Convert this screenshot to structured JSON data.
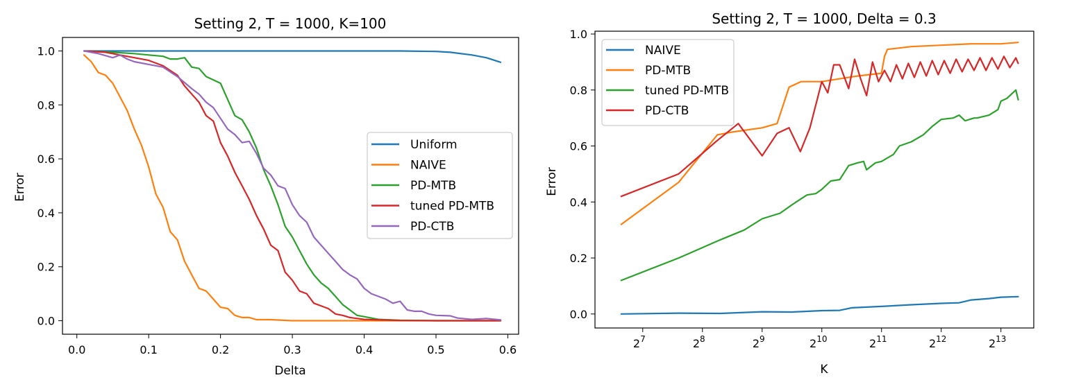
{
  "chart_data": [
    {
      "type": "line",
      "title": "Setting 2, T = 1000, K=100",
      "xlabel": "Delta",
      "ylabel": "Error",
      "xlim": [
        -0.02,
        0.615
      ],
      "ylim": [
        -0.05,
        1.05
      ],
      "xticks": [
        0.0,
        0.1,
        0.2,
        0.3,
        0.4,
        0.5,
        0.6
      ],
      "xtick_labels": [
        "0.0",
        "0.1",
        "0.2",
        "0.3",
        "0.4",
        "0.5",
        "0.6"
      ],
      "yticks": [
        0.0,
        0.2,
        0.4,
        0.6,
        0.8,
        1.0
      ],
      "ytick_labels": [
        "0.0",
        "0.2",
        "0.4",
        "0.6",
        "0.8",
        "1.0"
      ],
      "legend_position": "center-right",
      "series": [
        {
          "name": "Uniform",
          "color": "#1f77b4",
          "x": [
            0.01,
            0.1,
            0.2,
            0.3,
            0.4,
            0.45,
            0.5,
            0.52,
            0.55,
            0.57,
            0.59
          ],
          "y": [
            1.0,
            1.0,
            1.0,
            1.0,
            1.0,
            1.0,
            0.998,
            0.995,
            0.985,
            0.975,
            0.958
          ]
        },
        {
          "name": "NAIVE",
          "color": "#ff7f0e",
          "x": [
            0.01,
            0.02,
            0.03,
            0.04,
            0.05,
            0.06,
            0.07,
            0.08,
            0.09,
            0.1,
            0.11,
            0.12,
            0.13,
            0.14,
            0.15,
            0.16,
            0.17,
            0.18,
            0.19,
            0.2,
            0.21,
            0.22,
            0.23,
            0.24,
            0.25,
            0.27,
            0.3,
            0.35,
            0.4,
            0.5,
            0.59
          ],
          "y": [
            0.985,
            0.96,
            0.92,
            0.91,
            0.88,
            0.83,
            0.78,
            0.71,
            0.65,
            0.57,
            0.47,
            0.42,
            0.33,
            0.3,
            0.22,
            0.17,
            0.12,
            0.11,
            0.08,
            0.05,
            0.045,
            0.02,
            0.012,
            0.012,
            0.004,
            0.004,
            0.0,
            0.0,
            0.0,
            0.0,
            0.0
          ]
        },
        {
          "name": "PD-MTB",
          "color": "#2ca02c",
          "x": [
            0.01,
            0.05,
            0.08,
            0.1,
            0.12,
            0.13,
            0.14,
            0.15,
            0.16,
            0.17,
            0.18,
            0.2,
            0.22,
            0.23,
            0.24,
            0.25,
            0.26,
            0.27,
            0.28,
            0.29,
            0.3,
            0.31,
            0.32,
            0.33,
            0.34,
            0.35,
            0.36,
            0.37,
            0.38,
            0.39,
            0.4,
            0.42,
            0.45,
            0.5,
            0.59
          ],
          "y": [
            1.0,
            0.995,
            0.99,
            0.985,
            0.98,
            0.97,
            0.97,
            0.975,
            0.94,
            0.935,
            0.905,
            0.88,
            0.76,
            0.745,
            0.7,
            0.64,
            0.56,
            0.5,
            0.43,
            0.35,
            0.31,
            0.26,
            0.21,
            0.17,
            0.14,
            0.12,
            0.09,
            0.06,
            0.04,
            0.02,
            0.015,
            0.005,
            0.002,
            0.0,
            0.0
          ]
        },
        {
          "name": "tuned PD-MTB",
          "color": "#d62728",
          "x": [
            0.01,
            0.04,
            0.06,
            0.08,
            0.1,
            0.12,
            0.14,
            0.15,
            0.16,
            0.17,
            0.18,
            0.19,
            0.2,
            0.21,
            0.22,
            0.23,
            0.24,
            0.25,
            0.26,
            0.27,
            0.28,
            0.29,
            0.3,
            0.31,
            0.32,
            0.33,
            0.34,
            0.35,
            0.36,
            0.37,
            0.38,
            0.4,
            0.45,
            0.5,
            0.59
          ],
          "y": [
            1.0,
            0.995,
            0.985,
            0.975,
            0.965,
            0.945,
            0.91,
            0.87,
            0.84,
            0.81,
            0.76,
            0.74,
            0.66,
            0.61,
            0.55,
            0.5,
            0.45,
            0.39,
            0.34,
            0.28,
            0.26,
            0.18,
            0.15,
            0.11,
            0.1,
            0.065,
            0.055,
            0.045,
            0.025,
            0.02,
            0.012,
            0.005,
            0.001,
            0.0,
            0.0
          ]
        },
        {
          "name": "PD-CTB",
          "color": "#9467bd",
          "x": [
            0.01,
            0.03,
            0.05,
            0.06,
            0.07,
            0.08,
            0.1,
            0.12,
            0.14,
            0.16,
            0.17,
            0.18,
            0.19,
            0.2,
            0.21,
            0.22,
            0.23,
            0.24,
            0.25,
            0.26,
            0.27,
            0.28,
            0.29,
            0.3,
            0.31,
            0.32,
            0.33,
            0.34,
            0.35,
            0.36,
            0.37,
            0.38,
            0.39,
            0.4,
            0.41,
            0.42,
            0.43,
            0.44,
            0.45,
            0.46,
            0.47,
            0.48,
            0.49,
            0.5,
            0.52,
            0.53,
            0.55,
            0.57,
            0.59
          ],
          "y": [
            1.0,
            0.99,
            0.975,
            0.985,
            0.97,
            0.96,
            0.95,
            0.94,
            0.905,
            0.86,
            0.84,
            0.81,
            0.79,
            0.75,
            0.71,
            0.69,
            0.66,
            0.665,
            0.62,
            0.565,
            0.54,
            0.5,
            0.49,
            0.43,
            0.39,
            0.365,
            0.31,
            0.28,
            0.25,
            0.22,
            0.19,
            0.17,
            0.155,
            0.12,
            0.1,
            0.09,
            0.08,
            0.065,
            0.072,
            0.04,
            0.035,
            0.035,
            0.025,
            0.02,
            0.018,
            0.01,
            0.005,
            0.008,
            0.003
          ]
        }
      ]
    },
    {
      "type": "line",
      "title": "Setting 2, T = 1000, Delta = 0.3",
      "xlabel": "K",
      "ylabel": "Error",
      "xscale": "log2",
      "xlim_log2": [
        6.2,
        13.55
      ],
      "ylim": [
        -0.05,
        1.01
      ],
      "xticks_log2": [
        7,
        8,
        9,
        10,
        11,
        12,
        13
      ],
      "xtick_base": "2",
      "xtick_exponents": [
        "7",
        "8",
        "9",
        "10",
        "11",
        "12",
        "13"
      ],
      "yticks": [
        0.0,
        0.2,
        0.4,
        0.6,
        0.8,
        1.0
      ],
      "ytick_labels": [
        "0.0",
        "0.2",
        "0.4",
        "0.6",
        "0.8",
        "1.0"
      ],
      "legend_position": "top-left",
      "series": [
        {
          "name": "NAIVE",
          "color": "#1f77b4",
          "x_log2": [
            6.64,
            7.6,
            8.3,
            9.0,
            9.5,
            10.0,
            10.3,
            10.5,
            11.0,
            11.5,
            12.0,
            12.3,
            12.5,
            12.8,
            13.0,
            13.29
          ],
          "y": [
            0.0,
            0.003,
            0.002,
            0.008,
            0.007,
            0.012,
            0.013,
            0.022,
            0.027,
            0.033,
            0.038,
            0.04,
            0.05,
            0.055,
            0.06,
            0.062
          ]
        },
        {
          "name": "PD-MTB",
          "color": "#ff7f0e",
          "x_log2": [
            6.64,
            7.6,
            8.25,
            8.5,
            9.0,
            9.25,
            9.45,
            9.65,
            9.8,
            10.0,
            10.3,
            10.6,
            11.0,
            11.05,
            11.1,
            11.5,
            12.0,
            12.5,
            13.0,
            13.29
          ],
          "y": [
            0.32,
            0.47,
            0.64,
            0.65,
            0.665,
            0.68,
            0.81,
            0.83,
            0.83,
            0.83,
            0.84,
            0.85,
            0.86,
            0.92,
            0.945,
            0.955,
            0.96,
            0.965,
            0.965,
            0.97
          ]
        },
        {
          "name": "tuned PD-MTB",
          "color": "#2ca02c",
          "x_log2": [
            6.64,
            7.6,
            8.3,
            8.7,
            9.0,
            9.3,
            9.5,
            9.75,
            9.9,
            10.0,
            10.15,
            10.3,
            10.45,
            10.6,
            10.7,
            10.75,
            10.9,
            11.0,
            11.2,
            11.3,
            11.5,
            11.7,
            11.85,
            12.0,
            12.2,
            12.3,
            12.4,
            12.55,
            12.6,
            12.8,
            12.95,
            13.0,
            13.1,
            13.2,
            13.25,
            13.29
          ],
          "y": [
            0.12,
            0.2,
            0.265,
            0.3,
            0.34,
            0.36,
            0.39,
            0.425,
            0.43,
            0.445,
            0.475,
            0.48,
            0.53,
            0.54,
            0.545,
            0.515,
            0.54,
            0.545,
            0.57,
            0.6,
            0.615,
            0.64,
            0.67,
            0.695,
            0.7,
            0.71,
            0.69,
            0.7,
            0.7,
            0.71,
            0.73,
            0.76,
            0.77,
            0.79,
            0.8,
            0.765
          ]
        },
        {
          "name": "PD-CTB",
          "color": "#d62728",
          "x_log2": [
            6.64,
            7.6,
            8.25,
            8.6,
            9.0,
            9.25,
            9.45,
            9.64,
            9.8,
            10.0,
            10.1,
            10.2,
            10.3,
            10.45,
            10.55,
            10.65,
            10.75,
            10.85,
            10.95,
            11.05,
            11.15,
            11.25,
            11.35,
            11.45,
            11.55,
            11.65,
            11.75,
            11.85,
            11.95,
            12.05,
            12.15,
            12.25,
            12.35,
            12.45,
            12.55,
            12.65,
            12.75,
            12.85,
            12.95,
            13.05,
            13.15,
            13.25,
            13.29
          ],
          "y": [
            0.42,
            0.5,
            0.62,
            0.68,
            0.565,
            0.645,
            0.665,
            0.58,
            0.665,
            0.83,
            0.79,
            0.89,
            0.89,
            0.805,
            0.91,
            0.84,
            0.78,
            0.9,
            0.83,
            0.87,
            0.83,
            0.89,
            0.84,
            0.895,
            0.845,
            0.9,
            0.85,
            0.905,
            0.855,
            0.905,
            0.86,
            0.91,
            0.865,
            0.91,
            0.87,
            0.915,
            0.87,
            0.915,
            0.875,
            0.92,
            0.88,
            0.915,
            0.895
          ]
        }
      ]
    }
  ]
}
